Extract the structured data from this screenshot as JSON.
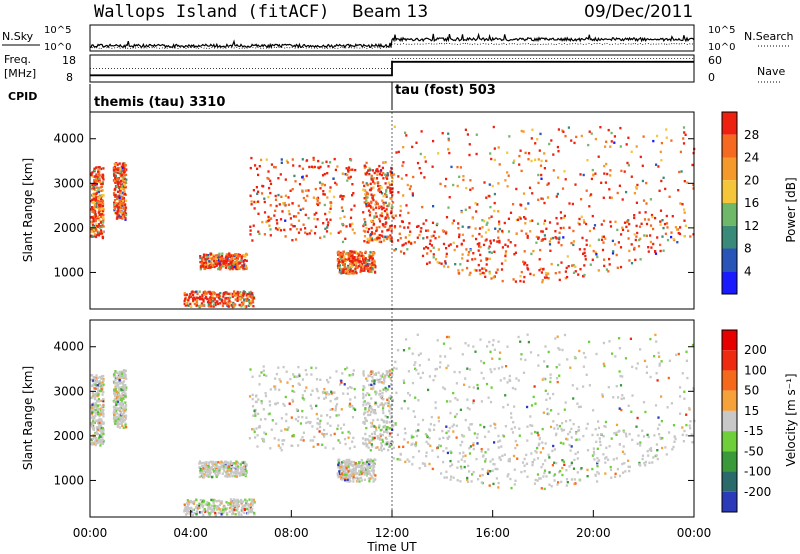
{
  "header": {
    "site": "Wallops Island (fitACF)",
    "beam": "Beam 13",
    "date": "09/Dec/2011"
  },
  "labels": {
    "nsky": "N.Sky",
    "nsearch": "N.Search",
    "freq_line1": "Freq.",
    "freq_line2": "[MHz]",
    "nave": "Nave",
    "cpid": "CPID"
  },
  "chart_data": [
    {
      "type": "line",
      "panel": "noise",
      "series": [
        {
          "name": "N.Sky"
        },
        {
          "name": "N.Search"
        }
      ],
      "left_ticks": [
        "10^5",
        "10^0"
      ],
      "right_ticks": [
        "10^5",
        "10^0"
      ],
      "description_values": {
        "nsky_level_before_12UT": 0.2,
        "nsky_level_after_12UT": 0.45
      }
    },
    {
      "type": "line",
      "panel": "frequency",
      "left_ticks": [
        "18",
        "8"
      ],
      "right_ticks": [
        "60",
        "0"
      ],
      "x": [
        0,
        12,
        12,
        24
      ],
      "freq_mhz": [
        10.5,
        10.5,
        15.5,
        15.5
      ],
      "nave": [
        30,
        30,
        52,
        52
      ]
    },
    {
      "type": "table",
      "panel": "cpid",
      "segments": [
        {
          "start_hour": 0,
          "label": "themis (tau) 3310"
        },
        {
          "start_hour": 12,
          "label": "tau (fost) 503"
        }
      ]
    },
    {
      "type": "heatmap",
      "panel": "power",
      "ylabel": "Slant Range [km]",
      "ylim": [
        180,
        4600
      ],
      "y_ticks": [
        1000,
        2000,
        3000,
        4000
      ],
      "colorbar_label": "Power [dB]",
      "colorbar_ticks": [
        "4",
        "8",
        "12",
        "16",
        "20",
        "24",
        "28"
      ],
      "colors": [
        "#1a1aff",
        "#2a55b8",
        "#3a8a7a",
        "#6fb86a",
        "#f5c63a",
        "#f59a2a",
        "#f56a20",
        "#ee2010"
      ],
      "features": [
        {
          "t": [
            0.0,
            0.5
          ],
          "r": [
            1800,
            3400
          ]
        },
        {
          "t": [
            0.9,
            1.4
          ],
          "r": [
            2200,
            3500
          ]
        },
        {
          "t": [
            4.3,
            6.2
          ],
          "r": [
            1100,
            1450
          ]
        },
        {
          "t": [
            3.7,
            6.5
          ],
          "r": [
            250,
            600
          ]
        },
        {
          "t": [
            6.3,
            10.5
          ],
          "r": [
            1700,
            3600
          ]
        },
        {
          "t": [
            9.8,
            11.3
          ],
          "r": [
            1000,
            1500
          ]
        },
        {
          "t": [
            10.8,
            12.0
          ],
          "r": [
            1700,
            3500
          ]
        },
        {
          "t": [
            12.0,
            24.0
          ],
          "r": [
            800,
            4300
          ]
        }
      ]
    },
    {
      "type": "heatmap",
      "panel": "velocity",
      "ylabel": "Slant Range [km]",
      "ylim": [
        180,
        4600
      ],
      "y_ticks": [
        1000,
        2000,
        3000,
        4000
      ],
      "colorbar_label": "Velocity [m s⁻¹]",
      "colorbar_ticks": [
        "200",
        "100",
        "50",
        "15",
        "-15",
        "-50",
        "-100",
        "-200"
      ],
      "colors": [
        "#2a3ab8",
        "#2a6a6a",
        "#3a9a3a",
        "#6ecf3a",
        "#c8c8c8",
        "#f5a23a",
        "#f56a1a",
        "#ee2a10",
        "#e60000"
      ],
      "xlabel": "Time UT",
      "x_ticks": [
        "00:00",
        "04:00",
        "08:00",
        "12:00",
        "16:00",
        "20:00",
        "00:00"
      ],
      "xlim_hours": [
        0,
        24
      ]
    }
  ]
}
